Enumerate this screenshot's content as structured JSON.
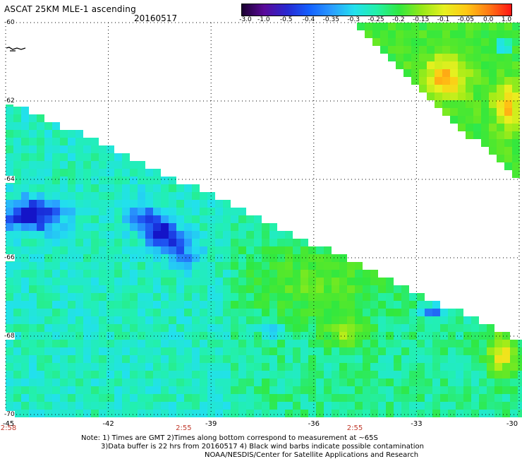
{
  "header": {
    "title": "ASCAT 25KM MLE-1 ascending",
    "date": "20160517"
  },
  "colorbar": {
    "labels": [
      "-3.0",
      "-1.0",
      "-0.5",
      "-0.4",
      "-0.35",
      "-0.3",
      "-0.25",
      "-0.2",
      "-0.15",
      "-0.1",
      "-0.05",
      "0.0",
      "1.0"
    ],
    "colors": [
      "#1a0030",
      "#5a0a9a",
      "#2828d0",
      "#1460ff",
      "#2a9cff",
      "#22e0ee",
      "#22f0a8",
      "#30e840",
      "#96e818",
      "#e6f020",
      "#ffc814",
      "#ff7814",
      "#ff1414"
    ]
  },
  "axes": {
    "lat_labels": [
      "-60",
      "-62",
      "-64",
      "-66",
      "-68",
      "-70"
    ],
    "lon_labels": [
      "-45",
      "-42",
      "-39",
      "-36",
      "-33",
      "-30"
    ],
    "lat_values": [
      -60,
      -62,
      -64,
      -66,
      -68,
      -70
    ],
    "lon_values": [
      -45,
      -42,
      -39,
      -36,
      -33,
      -30
    ],
    "time_labels": [
      {
        "text": "2:58",
        "lon": -45
      },
      {
        "text": "2:55",
        "lon": -39.8
      },
      {
        "text": "2:55",
        "lon": -34.8
      }
    ]
  },
  "notes": {
    "line1": "Note: 1) Times are GMT 2)Times along bottom correspond to measurement at ~65S",
    "line2": "3)Data buffer is 22 hrs from 20160517 4) Black wind barbs indicate possible contamination",
    "line3": "NOAA/NESDIS/Center for Satellite Applications and Research"
  }
}
